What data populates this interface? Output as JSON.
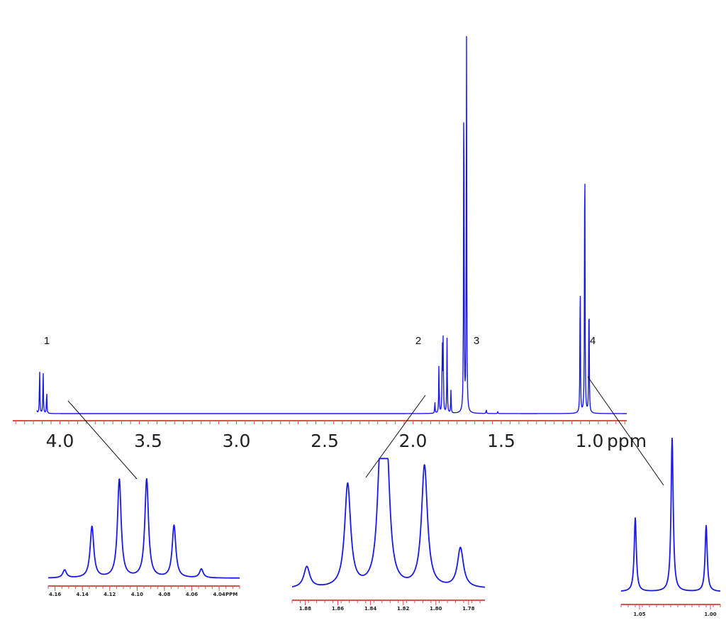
{
  "chart_data": [
    {
      "type": "line",
      "role": "main-spectrum",
      "xlabel": "ppm",
      "xlim": [
        4.3,
        0.8
      ],
      "x_reversed": true,
      "x_ticks": [
        4.0,
        3.5,
        3.0,
        2.5,
        2.0,
        1.5,
        1.0
      ],
      "x_tick_labels": [
        "4.0",
        "3.5",
        "3.0",
        "2.5",
        "2.0",
        "1.5",
        "1.0"
      ],
      "ylim": [
        0,
        1
      ],
      "peak_labels": [
        {
          "text": "1",
          "ppm": 4.1
        },
        {
          "text": "2",
          "ppm": 1.83
        },
        {
          "text": "3",
          "ppm": 1.7
        },
        {
          "text": "4",
          "ppm": 1.02
        }
      ],
      "peaks": [
        {
          "ppm": 4.135,
          "height": 0.06
        },
        {
          "ppm": 4.115,
          "height": 0.12
        },
        {
          "ppm": 4.095,
          "height": 0.12
        },
        {
          "ppm": 4.075,
          "height": 0.06
        },
        {
          "ppm": 1.876,
          "height": 0.03
        },
        {
          "ppm": 1.853,
          "height": 0.13
        },
        {
          "ppm": 1.834,
          "height": 0.19
        },
        {
          "ppm": 1.829,
          "height": 0.19
        },
        {
          "ppm": 1.807,
          "height": 0.2
        },
        {
          "ppm": 1.785,
          "height": 0.06
        },
        {
          "ppm": 1.712,
          "height": 0.97
        },
        {
          "ppm": 1.697,
          "height": 1.0
        },
        {
          "ppm": 1.585,
          "height": 0.01
        },
        {
          "ppm": 1.52,
          "height": 0.005
        },
        {
          "ppm": 1.053,
          "height": 0.38
        },
        {
          "ppm": 1.027,
          "height": 0.79
        },
        {
          "ppm": 1.003,
          "height": 0.34
        }
      ]
    },
    {
      "type": "line",
      "role": "inset-peak-1",
      "xlim": [
        4.165,
        4.025
      ],
      "x_ticks": [
        4.16,
        4.14,
        4.12,
        4.1,
        4.08,
        4.06,
        4.04
      ],
      "x_tick_labels": [
        "4.16",
        "4.14",
        "4.12",
        "4.10",
        "4.08",
        "4.06",
        "4.04"
      ],
      "unit_label": "PPM",
      "peaks": [
        {
          "ppm": 4.153,
          "height": 0.08
        },
        {
          "ppm": 4.133,
          "height": 0.52
        },
        {
          "ppm": 4.113,
          "height": 1.0
        },
        {
          "ppm": 4.093,
          "height": 1.0
        },
        {
          "ppm": 4.073,
          "height": 0.53
        },
        {
          "ppm": 4.053,
          "height": 0.09
        }
      ]
    },
    {
      "type": "line",
      "role": "inset-peak-2",
      "xlim": [
        1.888,
        1.77
      ],
      "x_ticks": [
        1.88,
        1.86,
        1.84,
        1.82,
        1.8,
        1.78
      ],
      "x_tick_labels": [
        "1.88",
        "1.86",
        "1.84",
        "1.82",
        "1.80",
        "1.78"
      ],
      "peaks": [
        {
          "ppm": 1.879,
          "height": 0.17
        },
        {
          "ppm": 1.854,
          "height": 0.83
        },
        {
          "ppm": 1.834,
          "height": 0.97
        },
        {
          "ppm": 1.83,
          "height": 0.96
        },
        {
          "ppm": 1.807,
          "height": 0.98
        },
        {
          "ppm": 1.785,
          "height": 0.32
        }
      ]
    },
    {
      "type": "line",
      "role": "inset-peak-4",
      "xlim": [
        1.063,
        0.993
      ],
      "x_ticks": [
        1.05,
        1.0
      ],
      "x_tick_labels": [
        "1.05",
        "1.00"
      ],
      "peaks": [
        {
          "ppm": 1.053,
          "height": 0.48
        },
        {
          "ppm": 1.027,
          "height": 1.0
        },
        {
          "ppm": 1.003,
          "height": 0.43
        }
      ]
    }
  ],
  "colors": {
    "trace": "#1a1ae6",
    "axis": "#d9534f"
  }
}
